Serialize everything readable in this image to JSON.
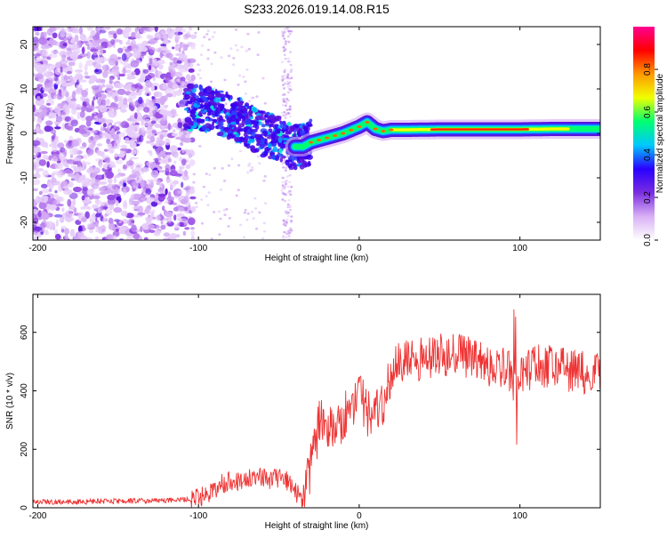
{
  "title": "S233.2026.019.14.08.R15",
  "chart_data": [
    {
      "type": "heatmap",
      "xlabel": "Height of straight line (km)",
      "ylabel": "Frequency (Hz)",
      "xlim": [
        -203,
        150
      ],
      "ylim": [
        -24,
        24
      ],
      "xticks": [
        -200,
        -100,
        0,
        100
      ],
      "yticks": [
        20,
        10,
        0,
        -10,
        -20
      ],
      "colorbar": {
        "label": "Normalized spectral amplitude",
        "range": [
          0,
          1
        ],
        "ticks": [
          0.0,
          0.2,
          0.4,
          0.6,
          0.8
        ],
        "tick_labels": [
          "0.0",
          "0.2",
          "0.4",
          "0.6",
          "0.8"
        ],
        "colormap": [
          "#ffffff",
          "#d9b0f5",
          "#7a2de0",
          "#2a00ff",
          "#00c8ff",
          "#00ff70",
          "#f0ff00",
          "#ff9900",
          "#ff0000",
          "#ff0090"
        ]
      },
      "ridge": {
        "x": [
          -100,
          -90,
          -80,
          -70,
          -60,
          -50,
          -40,
          -35,
          -30,
          -20,
          -10,
          0,
          5,
          10,
          15,
          20,
          30,
          50,
          80,
          100,
          120,
          150
        ],
        "y": [
          6,
          5,
          4,
          2,
          0,
          -1,
          -3,
          -3,
          -2,
          -1,
          0,
          1.5,
          2.5,
          1,
          0.5,
          0.8,
          0.8,
          0.9,
          0.9,
          0.9,
          1.0,
          1.0
        ]
      }
    },
    {
      "type": "line",
      "xlabel": "Height of straight line (km)",
      "ylabel": "SNR (10 * v/v)",
      "xlim": [
        -203,
        150
      ],
      "ylim": [
        0,
        730
      ],
      "xticks": [
        -200,
        -100,
        0,
        100
      ],
      "yticks": [
        0,
        200,
        400,
        600
      ],
      "color": "#ee3333",
      "series": [
        {
          "name": "SNR",
          "x": [
            -203,
            -180,
            -160,
            -140,
            -120,
            -105,
            -95,
            -90,
            -85,
            -80,
            -75,
            -70,
            -65,
            -60,
            -55,
            -50,
            -45,
            -40,
            -35,
            -33,
            -30,
            -27,
            -25,
            -20,
            -15,
            -10,
            -5,
            0,
            5,
            10,
            15,
            20,
            30,
            40,
            50,
            60,
            70,
            80,
            90,
            95,
            97,
            99,
            105,
            110,
            120,
            130,
            140,
            150
          ],
          "y": [
            20,
            20,
            22,
            24,
            25,
            30,
            45,
            60,
            85,
            95,
            90,
            100,
            105,
            100,
            95,
            100,
            90,
            60,
            15,
            60,
            150,
            220,
            300,
            250,
            280,
            310,
            350,
            380,
            330,
            310,
            360,
            480,
            500,
            510,
            520,
            530,
            510,
            490,
            480,
            450,
            290,
            430,
            470,
            490,
            480,
            470,
            460,
            470
          ]
        }
      ]
    }
  ]
}
